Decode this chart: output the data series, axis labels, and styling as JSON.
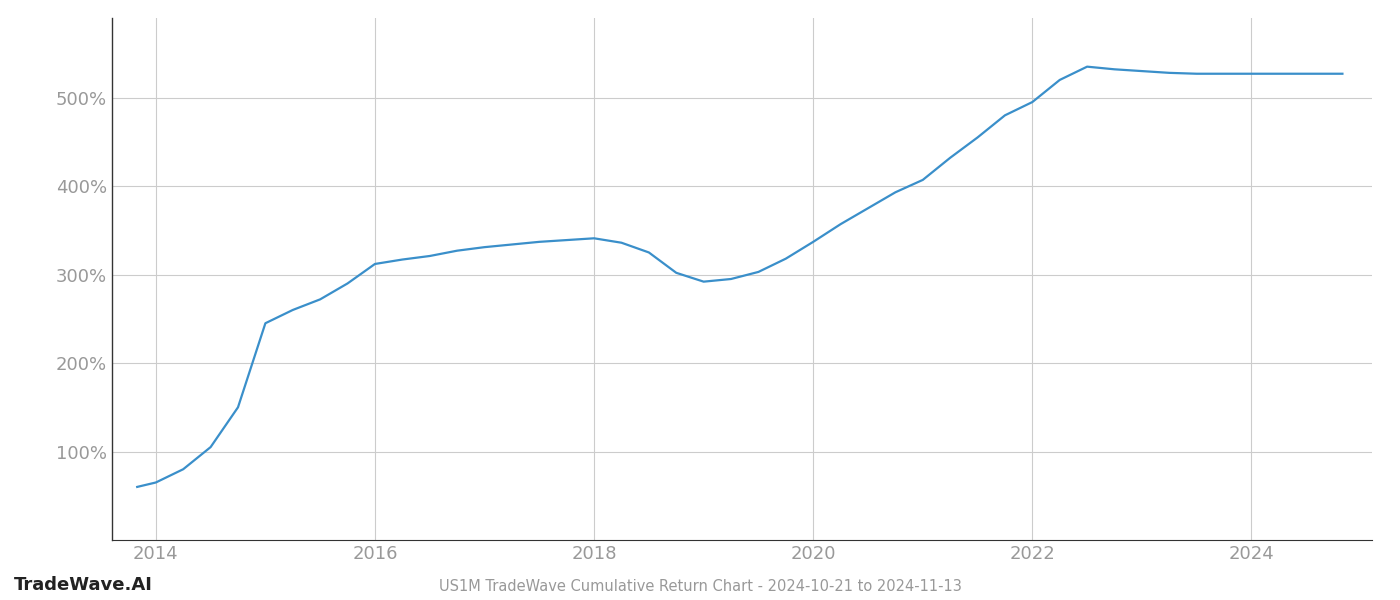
{
  "title": "US1M TradeWave Cumulative Return Chart - 2024-10-21 to 2024-11-13",
  "watermark": "TradeWave.AI",
  "line_color": "#3a8fca",
  "background_color": "#ffffff",
  "grid_color": "#cccccc",
  "x_values": [
    2013.83,
    2014.0,
    2014.25,
    2014.5,
    2014.75,
    2015.0,
    2015.25,
    2015.5,
    2015.75,
    2016.0,
    2016.25,
    2016.5,
    2016.75,
    2017.0,
    2017.25,
    2017.5,
    2017.75,
    2018.0,
    2018.25,
    2018.5,
    2018.75,
    2019.0,
    2019.25,
    2019.5,
    2019.75,
    2020.0,
    2020.25,
    2020.5,
    2020.75,
    2021.0,
    2021.25,
    2021.5,
    2021.75,
    2022.0,
    2022.25,
    2022.5,
    2022.75,
    2023.0,
    2023.25,
    2023.5,
    2023.75,
    2024.0,
    2024.25,
    2024.5,
    2024.83
  ],
  "y_values": [
    60,
    65,
    80,
    105,
    150,
    245,
    260,
    272,
    290,
    312,
    317,
    321,
    327,
    331,
    334,
    337,
    339,
    341,
    336,
    325,
    302,
    292,
    295,
    303,
    318,
    337,
    357,
    375,
    393,
    407,
    432,
    455,
    480,
    495,
    520,
    535,
    532,
    530,
    528,
    527,
    527,
    527,
    527,
    527,
    527
  ],
  "xlim": [
    2013.6,
    2025.1
  ],
  "ylim": [
    0,
    590
  ],
  "yticks": [
    100,
    200,
    300,
    400,
    500
  ],
  "ytick_labels": [
    "100%",
    "200%",
    "300%",
    "400%",
    "500%"
  ],
  "xticks": [
    2014,
    2016,
    2018,
    2020,
    2022,
    2024
  ],
  "line_width": 1.6,
  "title_fontsize": 10.5,
  "tick_fontsize": 13,
  "watermark_fontsize": 13,
  "spine_color": "#333333"
}
